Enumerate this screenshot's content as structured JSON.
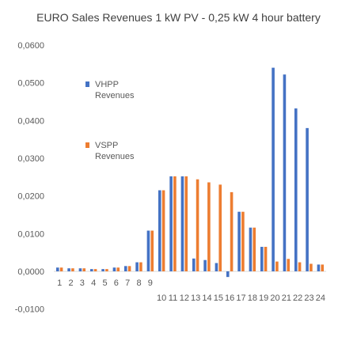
{
  "chart_data": {
    "type": "bar",
    "title": "EURO  Sales Revenues 1 kW PV - 0,25 kW 4 hour battery",
    "xlabel": "",
    "ylabel": "",
    "ylim": [
      -0.01,
      0.06
    ],
    "yticks": [
      "-0,0100",
      "0,0000",
      "0,0100",
      "0,0200",
      "0,0300",
      "0,0400",
      "0,0500",
      "0,0600"
    ],
    "categories": [
      "1",
      "2",
      "3",
      "4",
      "5",
      "6",
      "7",
      "8",
      "9",
      "10",
      "11",
      "12",
      "13",
      "14",
      "15",
      "16",
      "17",
      "18",
      "19",
      "20",
      "21",
      "22",
      "23",
      "24"
    ],
    "series": [
      {
        "name": "VHPP Revenues",
        "color": "#4472C4",
        "values": [
          0.001,
          0.0008,
          0.0008,
          0.0006,
          0.0006,
          0.001,
          0.0014,
          0.0024,
          0.0108,
          0.0215,
          0.0252,
          0.0252,
          0.0034,
          0.003,
          0.0022,
          -0.0015,
          0.0158,
          0.0116,
          0.0065,
          0.054,
          0.0522,
          0.0432,
          0.038,
          0.0018
        ]
      },
      {
        "name": "VSPP Revenues",
        "color": "#ED7D31",
        "values": [
          0.001,
          0.0008,
          0.0008,
          0.0006,
          0.0006,
          0.001,
          0.0014,
          0.0024,
          0.0108,
          0.0215,
          0.0252,
          0.0252,
          0.0244,
          0.0236,
          0.023,
          0.021,
          0.0158,
          0.0116,
          0.0065,
          0.0026,
          0.0033,
          0.0024,
          0.002,
          0.0018
        ]
      }
    ],
    "legend_position": "left inside",
    "grid": false
  }
}
